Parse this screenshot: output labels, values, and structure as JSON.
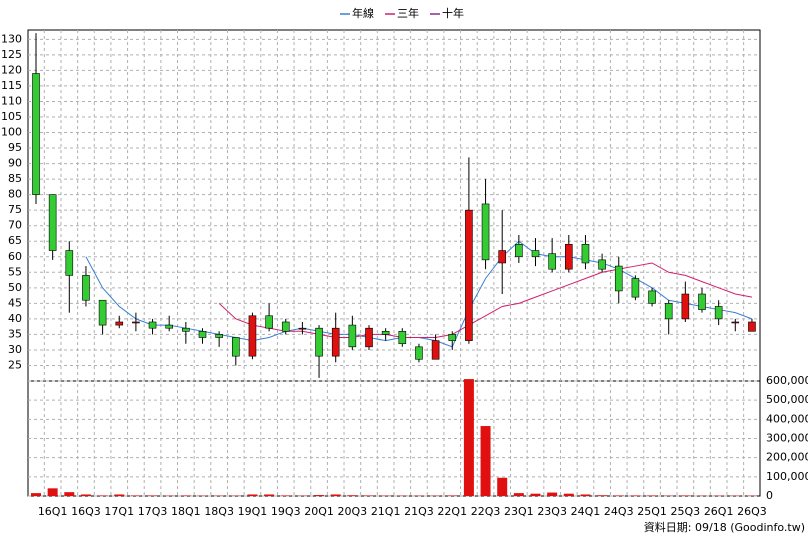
{
  "chart_data": {
    "type": "candlestick",
    "categories": [
      null,
      "16Q1",
      null,
      "16Q3",
      null,
      "17Q1",
      null,
      "17Q3",
      null,
      "18Q1",
      null,
      "18Q3",
      null,
      "19Q1",
      null,
      "19Q3",
      null,
      "20Q1",
      null,
      "20Q3",
      null,
      "21Q1",
      null,
      "21Q3",
      null,
      "22Q1",
      null,
      "22Q3",
      null,
      "23Q1",
      null,
      "23Q3",
      null,
      "24Q1",
      null,
      "24Q3",
      null,
      "25Q1",
      null,
      "25Q3",
      null,
      "26Q1",
      null,
      "26Q3"
    ],
    "open": [
      119,
      80,
      62,
      54,
      46,
      38,
      39,
      39,
      38,
      37,
      36,
      35,
      34,
      28,
      41,
      39,
      37,
      37,
      28,
      38,
      31,
      36,
      36,
      31,
      27,
      35,
      33,
      77,
      58,
      64,
      62,
      61,
      56,
      64,
      59,
      57,
      53,
      49,
      45,
      40,
      48,
      44,
      39,
      36
    ],
    "high": [
      132,
      80,
      65,
      57,
      46,
      41,
      42,
      40,
      41,
      39,
      37,
      36,
      34,
      42,
      45,
      40,
      39,
      38,
      42,
      41,
      38,
      37,
      37,
      32,
      35,
      36,
      92,
      85,
      75,
      67,
      66,
      66,
      67,
      67,
      61,
      60,
      54,
      50,
      46,
      52,
      50,
      46,
      40,
      40
    ],
    "low": [
      77,
      59,
      42,
      44,
      35,
      37,
      36,
      35,
      36,
      32,
      32,
      31,
      25,
      27,
      36,
      35,
      35,
      21,
      26,
      30,
      30,
      33,
      31,
      26,
      27,
      30,
      32,
      56,
      48,
      58,
      57,
      55,
      55,
      56,
      55,
      45,
      46,
      44,
      35,
      39,
      42,
      38,
      36,
      36
    ],
    "close": [
      80,
      62,
      54,
      46,
      38,
      39,
      39,
      37,
      37,
      36,
      34,
      34,
      28,
      41,
      37,
      36,
      37,
      28,
      37,
      31,
      37,
      35,
      32,
      27,
      33,
      33,
      75,
      59,
      62,
      60,
      60,
      56,
      64,
      58,
      56,
      49,
      47,
      45,
      40,
      48,
      43,
      40,
      39,
      39
    ],
    "volume": [
      15000,
      40000,
      20000,
      8000,
      3000,
      8000,
      3000,
      3000,
      2000,
      3000,
      2000,
      2000,
      2000,
      8000,
      8000,
      3000,
      2000,
      5000,
      8000,
      4000,
      3000,
      2000,
      2000,
      2000,
      2000,
      3000,
      610000,
      365000,
      95000,
      15000,
      12000,
      18000,
      12000,
      8000,
      4000,
      3000,
      3000,
      3000,
      2000,
      3000,
      2000,
      2000,
      2000,
      2000
    ],
    "up_color": "#e01010",
    "down_color": "#33cc33",
    "volume_color": "#e01010",
    "series": [
      {
        "name": "年線",
        "color": "#3a7fd5",
        "values": [
          null,
          null,
          null,
          60,
          50,
          44,
          40,
          38,
          38,
          37,
          36,
          35,
          34,
          33,
          34,
          36,
          37,
          36,
          35,
          35,
          34,
          33,
          34,
          34,
          33,
          31,
          43,
          53,
          60,
          65,
          61,
          60,
          60,
          59,
          58,
          56,
          53,
          50,
          46,
          45,
          44,
          43,
          42,
          40
        ]
      },
      {
        "name": "三年",
        "color": "#d0206a",
        "values": [
          null,
          null,
          null,
          null,
          null,
          null,
          null,
          null,
          null,
          null,
          null,
          45,
          40,
          38,
          37,
          36,
          36,
          35,
          34,
          34,
          35,
          35,
          34,
          34,
          34,
          35,
          38,
          41,
          44,
          45,
          47,
          49,
          51,
          53,
          55,
          56,
          57,
          58,
          55,
          54,
          52,
          50,
          48,
          47
        ]
      },
      {
        "name": "十年",
        "color": "#8a2a8a",
        "values": [
          null,
          null,
          null,
          null,
          null,
          null,
          null,
          null,
          null,
          null,
          null,
          null,
          null,
          null,
          null,
          null,
          null,
          null,
          null,
          null,
          null,
          null,
          null,
          null,
          null,
          null,
          null,
          null,
          null,
          null,
          null,
          null,
          null,
          null,
          null,
          null,
          null,
          null,
          null,
          null,
          null,
          null,
          null,
          null
        ]
      }
    ],
    "ylim": [
      20,
      133
    ],
    "yticks": [
      25,
      30,
      35,
      40,
      45,
      50,
      55,
      60,
      65,
      70,
      75,
      80,
      85,
      90,
      95,
      100,
      105,
      110,
      115,
      120,
      125,
      130
    ],
    "y2lim": [
      0,
      600000
    ],
    "y2ticks": [
      0,
      {
        "value": 100000,
        "label": "100,000"
      },
      {
        "value": 200000,
        "label": "200,000"
      },
      {
        "value": 300000,
        "label": "300,000"
      },
      {
        "value": 400000,
        "label": "400,000"
      },
      {
        "value": 500000,
        "label": "500,000"
      },
      {
        "value": 600000,
        "label": "600,000"
      }
    ],
    "grid": true,
    "source": "資料日期: 09/18 (Goodinfo.tw)"
  }
}
